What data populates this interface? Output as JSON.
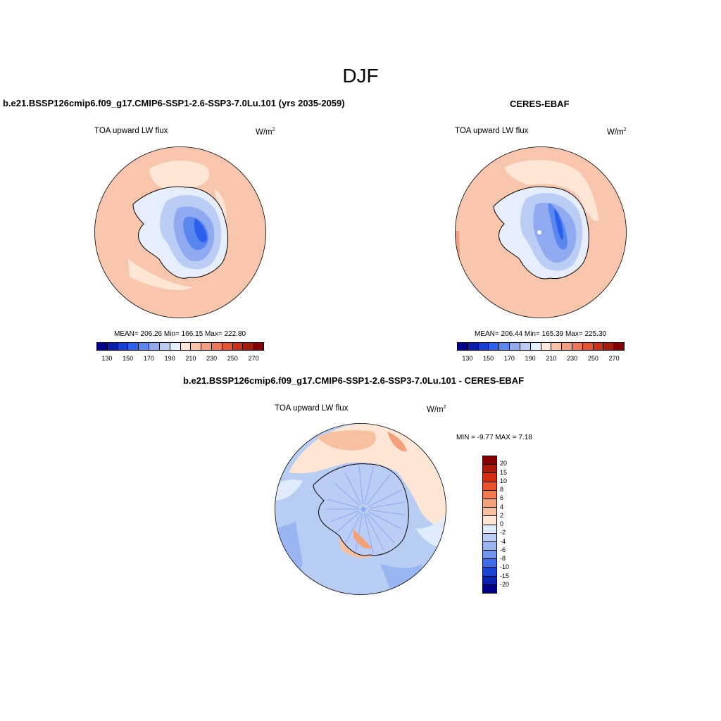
{
  "main_title": "DJF",
  "panels": {
    "model": {
      "title": "b.e21.BSSP126cmip6.f09_g17.CMIP6-SSP1-2.6-SSP3-7.0Lu.101 (yrs 2035-2059)",
      "variable": "TOA upward LW flux",
      "units": "W/m",
      "units_sup": "2",
      "stats": "MEAN= 206.26  Min= 166.15  Max= 222.80"
    },
    "obs": {
      "title": "CERES-EBAF",
      "variable": "TOA upward LW flux",
      "units": "W/m",
      "units_sup": "2",
      "stats": "MEAN= 206.44  Min= 165.39  Max= 225.30"
    },
    "diff": {
      "title": "b.e21.BSSP126cmip6.f09_g17.CMIP6-SSP1-2.6-SSP3-7.0Lu.101 - CERES-EBAF",
      "variable": "TOA upward LW flux",
      "units": "W/m",
      "units_sup": "2",
      "stats": "MIN =  -9.77 MAX =   7.18"
    }
  },
  "colorbar_abs": {
    "ticks": [
      "130",
      "150",
      "170",
      "190",
      "210",
      "230",
      "250",
      "270"
    ],
    "colors": [
      "#00008b",
      "#0a1fb0",
      "#1440d8",
      "#2b60ee",
      "#5a86f0",
      "#8faaf0",
      "#bccdf5",
      "#e6eefb",
      "#fde6d6",
      "#f7c2a6",
      "#f29e7e",
      "#ec7a55",
      "#e25630",
      "#cc3214",
      "#a81a0a",
      "#850000"
    ]
  },
  "colorbar_diff": {
    "ticks": [
      "20",
      "15",
      "10",
      "8",
      "6",
      "4",
      "2",
      "0",
      "-2",
      "-4",
      "-6",
      "-8",
      "-10",
      "-15",
      "-20"
    ],
    "colors": [
      "#850000",
      "#aa1a08",
      "#d22e10",
      "#ea5228",
      "#f07a4c",
      "#f4a079",
      "#f7c0a0",
      "#fde6d6",
      "#e0ebfb",
      "#bccdf5",
      "#9ab6f2",
      "#6f95ee",
      "#3f6de8",
      "#1a44d4",
      "#0b22ae",
      "#00008b"
    ]
  },
  "colors": {
    "map_background_abs": "#f8c6ac",
    "map_background_diff": "#b8cdf4",
    "coastline": "#000000"
  }
}
